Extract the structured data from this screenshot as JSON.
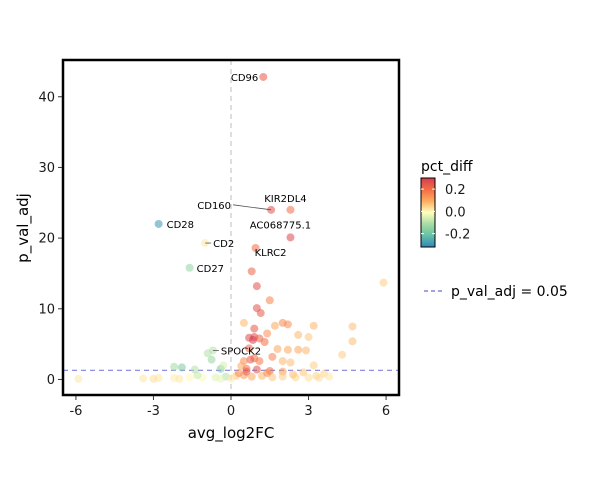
{
  "chart_data": {
    "type": "scatter",
    "xlabel": "avg_log2FC",
    "ylabel": "p_val_adj",
    "xlim": [
      -6.5,
      6.5
    ],
    "ylim": [
      -2.2,
      45.2
    ],
    "x_ticks": [
      -6,
      -3,
      0,
      3,
      6
    ],
    "y_ticks": [
      0,
      10,
      20,
      30,
      40
    ],
    "grid": false,
    "threshold_line": {
      "y": 1.3,
      "label": "p_val_adj = 0.05",
      "color": "#6b6bd6"
    },
    "vertical_reference_x": 0,
    "color_legend": {
      "title": "pct_diff",
      "ticks": [
        0.2,
        0.0,
        -0.2
      ],
      "tick_labels": [
        "0.2",
        "0.0",
        "-0.2"
      ],
      "range": [
        -0.32,
        0.3
      ],
      "colormap": "Spectral"
    },
    "points": [
      {
        "x": 1.25,
        "y": 42.8,
        "c": 0.24,
        "label": "CD96"
      },
      {
        "x": 1.55,
        "y": 24.0,
        "c": 0.26,
        "label": "CD160"
      },
      {
        "x": 2.3,
        "y": 24.0,
        "c": 0.2,
        "label": "KIR2DL4"
      },
      {
        "x": -2.8,
        "y": 22.0,
        "c": -0.3,
        "label": "CD28"
      },
      {
        "x": 2.3,
        "y": 20.1,
        "c": 0.28,
        "label": "AC068775.1"
      },
      {
        "x": -1.0,
        "y": 19.3,
        "c": 0.02,
        "label": "CD2"
      },
      {
        "x": 0.95,
        "y": 18.6,
        "c": 0.2,
        "label": "KLRC2"
      },
      {
        "x": -1.6,
        "y": 15.8,
        "c": -0.15,
        "label": "CD27"
      },
      {
        "x": -0.7,
        "y": 4.1,
        "c": -0.1,
        "label": "SPOCK2"
      },
      {
        "x": 0.8,
        "y": 15.3,
        "c": 0.22
      },
      {
        "x": 1.0,
        "y": 13.2,
        "c": 0.26
      },
      {
        "x": 1.5,
        "y": 11.2,
        "c": 0.16
      },
      {
        "x": 1.0,
        "y": 10.1,
        "c": 0.26
      },
      {
        "x": 1.15,
        "y": 9.4,
        "c": 0.24
      },
      {
        "x": 5.9,
        "y": 13.7,
        "c": 0.05
      },
      {
        "x": 0.5,
        "y": 8.0,
        "c": 0.08
      },
      {
        "x": 2.0,
        "y": 8.0,
        "c": 0.15
      },
      {
        "x": 2.2,
        "y": 7.8,
        "c": 0.15
      },
      {
        "x": 1.7,
        "y": 7.6,
        "c": 0.1
      },
      {
        "x": 0.9,
        "y": 7.2,
        "c": 0.24
      },
      {
        "x": 3.2,
        "y": 7.6,
        "c": 0.08
      },
      {
        "x": 4.7,
        "y": 7.5,
        "c": 0.07
      },
      {
        "x": 1.4,
        "y": 6.5,
        "c": 0.14
      },
      {
        "x": 2.6,
        "y": 6.3,
        "c": 0.08
      },
      {
        "x": 0.9,
        "y": 6.0,
        "c": 0.28
      },
      {
        "x": 0.7,
        "y": 5.9,
        "c": 0.27
      },
      {
        "x": 0.85,
        "y": 5.6,
        "c": 0.3
      },
      {
        "x": 1.1,
        "y": 5.8,
        "c": 0.22
      },
      {
        "x": 1.3,
        "y": 5.3,
        "c": 0.2
      },
      {
        "x": 3.0,
        "y": 6.0,
        "c": 0.06
      },
      {
        "x": 4.7,
        "y": 5.4,
        "c": 0.07
      },
      {
        "x": 0.7,
        "y": 4.4,
        "c": 0.22
      },
      {
        "x": 1.8,
        "y": 4.3,
        "c": 0.1
      },
      {
        "x": 2.2,
        "y": 4.2,
        "c": 0.1
      },
      {
        "x": 2.6,
        "y": 4.2,
        "c": 0.1
      },
      {
        "x": 2.9,
        "y": 4.1,
        "c": 0.08
      },
      {
        "x": 4.3,
        "y": 3.5,
        "c": 0.05
      },
      {
        "x": 1.6,
        "y": 3.2,
        "c": 0.16
      },
      {
        "x": 0.9,
        "y": 3.0,
        "c": 0.2
      },
      {
        "x": 0.75,
        "y": 2.8,
        "c": 0.24
      },
      {
        "x": 1.1,
        "y": 2.6,
        "c": 0.18
      },
      {
        "x": 0.5,
        "y": 2.6,
        "c": 0.15
      },
      {
        "x": 2.0,
        "y": 2.6,
        "c": 0.08
      },
      {
        "x": 2.3,
        "y": 2.4,
        "c": 0.07
      },
      {
        "x": 3.2,
        "y": 2.0,
        "c": 0.05
      },
      {
        "x": -0.9,
        "y": 3.7,
        "c": -0.1
      },
      {
        "x": -0.75,
        "y": 2.8,
        "c": -0.14
      },
      {
        "x": -2.2,
        "y": 1.8,
        "c": -0.12
      },
      {
        "x": -1.9,
        "y": 1.7,
        "c": -0.18
      },
      {
        "x": -1.4,
        "y": 1.4,
        "c": -0.1
      },
      {
        "x": -0.4,
        "y": 1.5,
        "c": -0.18
      },
      {
        "x": -0.3,
        "y": 2.0,
        "c": -0.06
      },
      {
        "x": 0.4,
        "y": 1.9,
        "c": 0.1
      },
      {
        "x": 0.6,
        "y": 1.5,
        "c": 0.2
      },
      {
        "x": 1.0,
        "y": 1.4,
        "c": 0.26
      },
      {
        "x": 1.5,
        "y": 1.2,
        "c": 0.2
      },
      {
        "x": 2.0,
        "y": 1.1,
        "c": 0.12
      },
      {
        "x": 2.8,
        "y": 1.0,
        "c": 0.06
      },
      {
        "x": 3.6,
        "y": 0.8,
        "c": 0.04
      },
      {
        "x": -5.9,
        "y": 0.1,
        "c": 0.02
      },
      {
        "x": -3.4,
        "y": 0.15,
        "c": 0.02
      },
      {
        "x": -2.8,
        "y": 0.2,
        "c": 0.02
      },
      {
        "x": -2.2,
        "y": 0.2,
        "c": 0.01
      },
      {
        "x": -1.6,
        "y": 0.3,
        "c": 0.0
      },
      {
        "x": -1.1,
        "y": 0.25,
        "c": -0.02
      },
      {
        "x": -0.6,
        "y": 0.3,
        "c": -0.05
      },
      {
        "x": -0.2,
        "y": 0.4,
        "c": -0.1
      },
      {
        "x": 0.2,
        "y": 0.5,
        "c": 0.06
      },
      {
        "x": 0.5,
        "y": 0.6,
        "c": 0.12
      },
      {
        "x": 0.8,
        "y": 0.4,
        "c": 0.1
      },
      {
        "x": 1.2,
        "y": 0.5,
        "c": 0.08
      },
      {
        "x": 1.6,
        "y": 0.3,
        "c": 0.06
      },
      {
        "x": 2.0,
        "y": 0.4,
        "c": 0.05
      },
      {
        "x": 2.5,
        "y": 0.3,
        "c": 0.04
      },
      {
        "x": 3.0,
        "y": 0.25,
        "c": 0.03
      },
      {
        "x": 3.4,
        "y": 0.2,
        "c": 0.03
      },
      {
        "x": 3.8,
        "y": 0.4,
        "c": 0.02
      },
      {
        "x": -3.0,
        "y": 0.1,
        "c": 0.03
      },
      {
        "x": -2.0,
        "y": 0.1,
        "c": 0.02
      },
      {
        "x": -0.4,
        "y": 0.1,
        "c": -0.04
      },
      {
        "x": 0.0,
        "y": 0.15,
        "c": 0.02
      },
      {
        "x": 0.3,
        "y": 0.9,
        "c": 0.15
      },
      {
        "x": 1.4,
        "y": 0.9,
        "c": 0.15
      },
      {
        "x": 2.4,
        "y": 0.7,
        "c": 0.07
      },
      {
        "x": -1.3,
        "y": 0.6,
        "c": -0.08
      },
      {
        "x": 0.6,
        "y": 1.1,
        "c": 0.24
      },
      {
        "x": 3.3,
        "y": 0.5,
        "c": 0.04
      }
    ]
  }
}
